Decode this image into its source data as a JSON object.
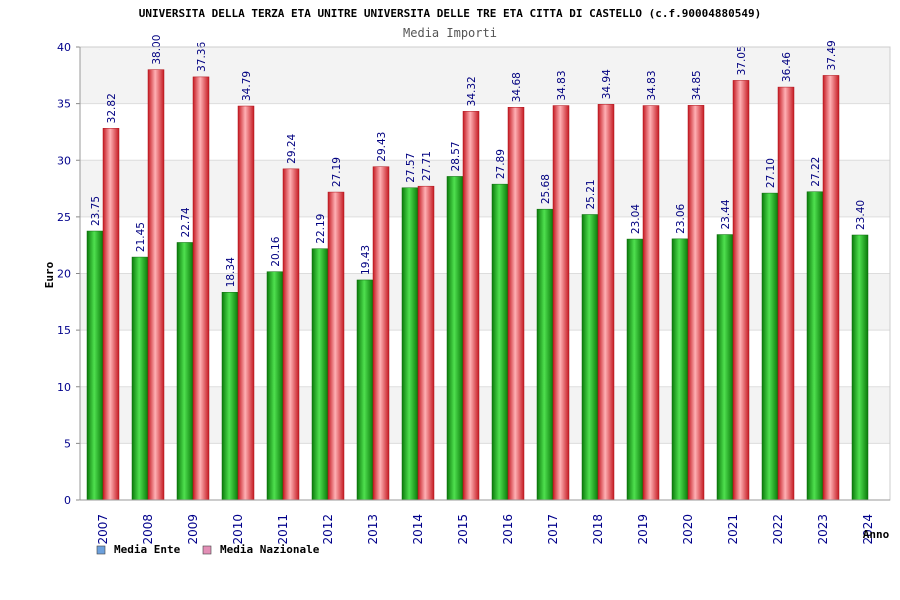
{
  "chart_data": {
    "type": "bar",
    "title": "UNIVERSITA DELLA TERZA ETA UNITRE UNIVERSITA DELLE TRE ETA CITTA DI CASTELLO (c.f.90004880549)",
    "subtitle": "Media Importi",
    "xlabel": "Anno",
    "ylabel": "Euro",
    "ylim": [
      0,
      40
    ],
    "yticks": [
      0,
      5,
      10,
      15,
      20,
      25,
      30,
      35,
      40
    ],
    "categories": [
      "2007",
      "2008",
      "2009",
      "2010",
      "2011",
      "2012",
      "2013",
      "2014",
      "2015",
      "2016",
      "2017",
      "2018",
      "2019",
      "2020",
      "2021",
      "2022",
      "2023",
      "2024"
    ],
    "series": [
      {
        "name": "Media Ente",
        "legend_color": "#6ca0dc",
        "bar_color": "#1fae1f",
        "values": [
          23.75,
          21.45,
          22.74,
          18.34,
          20.16,
          22.19,
          19.43,
          27.57,
          28.57,
          27.89,
          25.68,
          25.21,
          23.04,
          23.06,
          23.44,
          27.1,
          27.22,
          23.4
        ],
        "labels": [
          "23.75",
          "21.45",
          "22.74",
          "18.34",
          "20.16",
          "22.19",
          "19.43",
          "27.57",
          "28.57",
          "27.89",
          "25.68",
          "25.21",
          "23.04",
          "23.06",
          "23.44",
          "27.10",
          "27.22",
          "23.40"
        ]
      },
      {
        "name": "Media Nazionale",
        "legend_color": "#e38fb6",
        "bar_color": "#e8323a",
        "values": [
          32.82,
          38.0,
          37.36,
          34.79,
          29.24,
          27.19,
          29.43,
          27.71,
          34.32,
          34.68,
          34.83,
          34.94,
          34.83,
          34.85,
          37.05,
          36.46,
          37.49,
          null
        ],
        "labels": [
          "32.82",
          "38.00",
          "37.36",
          "34.79",
          "29.24",
          "27.19",
          "29.43",
          "27.71",
          "34.32",
          "34.68",
          "34.83",
          "34.94",
          "34.83",
          "34.85",
          "37.05",
          "36.46",
          "37.49",
          ""
        ]
      }
    ],
    "grid": true,
    "legend_position": "bottom-left"
  }
}
